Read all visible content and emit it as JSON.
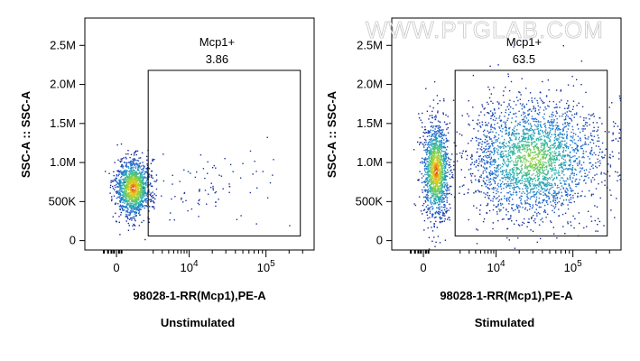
{
  "watermark": "WWW.PTGLAB.COM",
  "chart_data": [
    {
      "type": "scatter",
      "panel": "unstimulated",
      "caption": "Unstimulated",
      "xlabel": "98028-1-RR(Mcp1),PE-A",
      "ylabel": "SSC-A :: SSC-A",
      "x_scale": "biexponential",
      "y_ticks": [
        {
          "label": "0",
          "value": 0
        },
        {
          "label": "500K",
          "value": 500000
        },
        {
          "label": "1.0M",
          "value": 1000000
        },
        {
          "label": "1.5M",
          "value": 1500000
        },
        {
          "label": "2.0M",
          "value": 2000000
        },
        {
          "label": "2.5M",
          "value": 2500000
        }
      ],
      "x_ticks": [
        {
          "label": "0",
          "value": 0
        },
        {
          "base": "10",
          "exp": "4",
          "value": 10000
        },
        {
          "base": "10",
          "exp": "5",
          "value": 100000
        }
      ],
      "ylim": [
        -120000,
        2850000
      ],
      "gate": {
        "name": "Mcp1+",
        "percent": "3.86",
        "x_min": 1600,
        "x_max": 280000,
        "y_min": 60000,
        "y_max": 2180000
      },
      "populations": [
        {
          "x_center": 800,
          "x_spread_decades": 0.25,
          "y_center": 680000,
          "y_spread": 180000,
          "density": "high"
        },
        {
          "x_center": 15000,
          "x_spread_decades": 0.6,
          "y_center": 700000,
          "y_spread": 250000,
          "density": "sparse"
        }
      ]
    },
    {
      "type": "scatter",
      "panel": "stimulated",
      "caption": "Stimulated",
      "xlabel": "98028-1-RR(Mcp1),PE-A",
      "ylabel": "SSC-A :: SSC-A",
      "x_scale": "biexponential",
      "y_ticks": [
        {
          "label": "0",
          "value": 0
        },
        {
          "label": "500K",
          "value": 500000
        },
        {
          "label": "1.0M",
          "value": 1000000
        },
        {
          "label": "1.5M",
          "value": 1500000
        },
        {
          "label": "2.0M",
          "value": 2000000
        },
        {
          "label": "2.5M",
          "value": 2500000
        }
      ],
      "x_ticks": [
        {
          "label": "0",
          "value": 0
        },
        {
          "base": "10",
          "exp": "4",
          "value": 10000
        },
        {
          "base": "10",
          "exp": "5",
          "value": 100000
        }
      ],
      "ylim": [
        -120000,
        2850000
      ],
      "gate": {
        "name": "Mcp1+",
        "percent": "63.5",
        "x_min": 1600,
        "x_max": 280000,
        "y_min": 60000,
        "y_max": 2180000
      },
      "populations": [
        {
          "x_center": 600,
          "x_spread_decades": 0.25,
          "y_center": 900000,
          "y_spread": 300000,
          "density": "high"
        },
        {
          "x_center": 30000,
          "x_spread_decades": 0.45,
          "y_center": 1050000,
          "y_spread": 380000,
          "density": "medium"
        }
      ]
    }
  ]
}
